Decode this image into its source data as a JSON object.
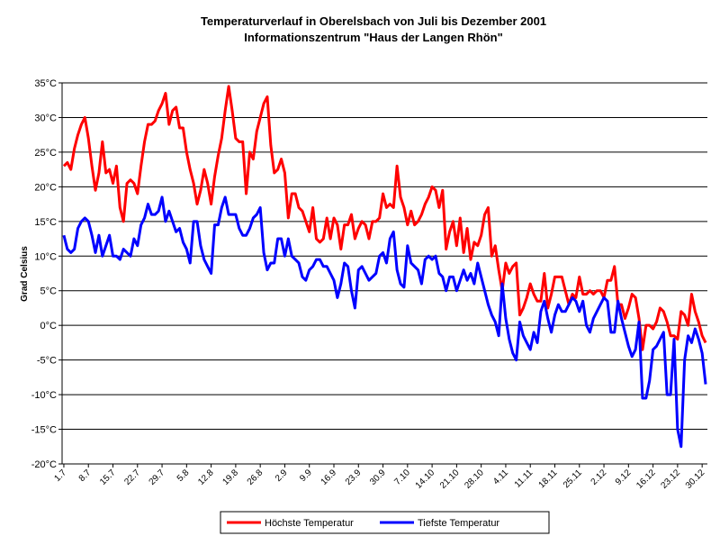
{
  "chart_data": {
    "type": "line",
    "title": "Temperaturverlauf in Oberelsbach von Juli bis Dezember 2001",
    "subtitle": "Informationszentrum \"Haus der Langen Rhön\"",
    "y_label": "Grad Celsius",
    "grid": true,
    "legend": "bottom",
    "categories": [
      "1.7",
      null,
      null,
      null,
      null,
      null,
      null,
      "8.7",
      null,
      null,
      null,
      null,
      null,
      null,
      "15.7",
      null,
      null,
      null,
      null,
      null,
      null,
      "22.7",
      null,
      null,
      null,
      null,
      null,
      null,
      "29.7",
      null,
      null,
      null,
      null,
      null,
      null,
      "5.8",
      null,
      null,
      null,
      null,
      null,
      null,
      "12.8",
      null,
      null,
      null,
      null,
      null,
      null,
      "19.8",
      null,
      null,
      null,
      null,
      null,
      null,
      "26.8",
      null,
      null,
      null,
      null,
      null,
      null,
      "2.9",
      null,
      null,
      null,
      null,
      null,
      null,
      "9.9",
      null,
      null,
      null,
      null,
      null,
      null,
      "16.9",
      null,
      null,
      null,
      null,
      null,
      null,
      "23.9",
      null,
      null,
      null,
      null,
      null,
      null,
      "30.9",
      null,
      null,
      null,
      null,
      null,
      null,
      "7.10",
      null,
      null,
      null,
      null,
      null,
      null,
      "14.10",
      null,
      null,
      null,
      null,
      null,
      null,
      "21.10",
      null,
      null,
      null,
      null,
      null,
      null,
      "28.10",
      null,
      null,
      null,
      null,
      null,
      null,
      "4.11",
      null,
      null,
      null,
      null,
      null,
      null,
      "11.11",
      null,
      null,
      null,
      null,
      null,
      null,
      "18.11",
      null,
      null,
      null,
      null,
      null,
      null,
      "25.11",
      null,
      null,
      null,
      null,
      null,
      null,
      "2.12",
      null,
      null,
      null,
      null,
      null,
      null,
      "9.12",
      null,
      null,
      null,
      null,
      null,
      null,
      "16.12",
      null,
      null,
      null,
      null,
      null,
      null,
      "23.12",
      null,
      null,
      null,
      null,
      null,
      null,
      "30.12",
      null
    ],
    "ylim": [
      -20,
      35
    ],
    "yticks": [
      {
        "value": -20,
        "label": "-20°C"
      },
      {
        "value": -15,
        "label": "-15°C"
      },
      {
        "value": -10,
        "label": "-10°C"
      },
      {
        "value": -5,
        "label": "-5°C"
      },
      {
        "value": 0,
        "label": "0°C"
      },
      {
        "value": 5,
        "label": "5°C"
      },
      {
        "value": 10,
        "label": "10°C"
      },
      {
        "value": 15,
        "label": "15°C"
      },
      {
        "value": 20,
        "label": "20°C"
      },
      {
        "value": 25,
        "label": "25°C"
      },
      {
        "value": 30,
        "label": "30°C"
      },
      {
        "value": 35,
        "label": "35°C"
      }
    ],
    "series": [
      {
        "name": "Höchste Temperatur",
        "color": "#ff0000",
        "values": [
          23,
          23.5,
          22.5,
          25.5,
          27.5,
          29,
          30,
          27,
          23,
          19.5,
          22,
          26.5,
          22,
          22.5,
          20.5,
          23,
          17,
          15,
          20.5,
          21,
          20.5,
          19,
          23,
          26.5,
          29,
          29,
          29.5,
          31,
          32,
          33.5,
          29,
          31,
          31.5,
          28.5,
          28.5,
          25,
          22.5,
          20.5,
          17.5,
          19.5,
          22.5,
          20.5,
          17.5,
          21.5,
          24.5,
          27,
          31,
          34.5,
          31,
          27,
          26.5,
          26.5,
          19,
          25,
          24,
          28,
          30,
          32,
          33,
          26,
          22,
          22.5,
          24,
          22,
          15.5,
          19,
          19,
          17,
          16.5,
          15,
          13.5,
          17,
          12.5,
          12,
          12.5,
          15.5,
          12.5,
          15.5,
          14.5,
          11,
          14.5,
          14.5,
          16,
          12.5,
          14,
          15,
          14.5,
          12.5,
          15,
          15,
          15.5,
          19,
          17,
          17.5,
          17,
          23,
          18.5,
          17,
          14.5,
          16.5,
          14.5,
          15,
          16,
          17.5,
          18.5,
          20,
          19.5,
          17,
          19.5,
          11,
          13.5,
          15,
          11.5,
          15.5,
          10.5,
          14,
          9.5,
          12,
          11.5,
          13,
          16,
          17,
          10,
          11.5,
          8,
          5,
          9,
          7.5,
          8.5,
          9,
          1.5,
          2.5,
          4,
          6,
          4.5,
          3.5,
          3.5,
          7.5,
          2.5,
          4.5,
          7,
          7,
          7,
          5,
          3,
          4.5,
          4,
          7,
          4.5,
          4.5,
          5,
          4.5,
          5,
          5,
          4,
          6.5,
          6.5,
          8.5,
          3,
          3,
          1,
          2.5,
          4.5,
          4,
          1,
          -3.5,
          0,
          0,
          -0.5,
          0.5,
          2.5,
          2,
          0.5,
          -1.5,
          -1.5,
          -2,
          2,
          1.5,
          0,
          4.5,
          2,
          0.5,
          -1.5,
          -2.5
        ]
      },
      {
        "name": "Tiefste Temperatur",
        "color": "#0000ff",
        "values": [
          13,
          11,
          10.5,
          11,
          14,
          15,
          15.5,
          15,
          13,
          10.5,
          13,
          10,
          11.5,
          13,
          10,
          10,
          9.5,
          11,
          10.5,
          10,
          12.5,
          11.5,
          14.5,
          15.5,
          17.5,
          16,
          16,
          16.5,
          18.5,
          15,
          16.5,
          15,
          13.5,
          14,
          12,
          11,
          9,
          15,
          15,
          11.5,
          9.5,
          8.5,
          7.5,
          14.5,
          14.5,
          17,
          18.5,
          16,
          16,
          16,
          14,
          13,
          13,
          14,
          15.5,
          16,
          17,
          10.5,
          8,
          9,
          9,
          12.5,
          12.5,
          10,
          12.5,
          10,
          9.5,
          9,
          7,
          6.5,
          8,
          8.5,
          9.5,
          9.5,
          8.5,
          8.5,
          7.5,
          6.5,
          4,
          6,
          9,
          8.5,
          5,
          2.5,
          8,
          8.5,
          7.5,
          6.5,
          7,
          7.5,
          10,
          10.5,
          9,
          12.5,
          13.5,
          8,
          6,
          5.5,
          11.5,
          9,
          8.5,
          8,
          6,
          9.5,
          10,
          9.5,
          10,
          7.5,
          7,
          5,
          7,
          7,
          5,
          6.5,
          8,
          6.5,
          7.5,
          6,
          9,
          7,
          5,
          3,
          1.5,
          0.5,
          -1.5,
          6,
          1,
          -2,
          -4,
          -5,
          0.5,
          -1.5,
          -2.5,
          -3.5,
          -1,
          -2.5,
          2,
          3.5,
          1,
          -1,
          1.5,
          3,
          2,
          2,
          3,
          4,
          3.5,
          2,
          3.5,
          0,
          -1,
          1,
          2,
          3,
          4,
          3.5,
          -1,
          -1,
          3.5,
          1,
          -1,
          -3,
          -4.5,
          -3.5,
          0.5,
          -10.5,
          -10.5,
          -8,
          -3.5,
          -3,
          -2,
          -1,
          -10,
          -10,
          -2,
          -15,
          -17.5,
          -5,
          -1.5,
          -2.5,
          -0.5,
          -2,
          -4,
          -8.5
        ]
      }
    ]
  }
}
